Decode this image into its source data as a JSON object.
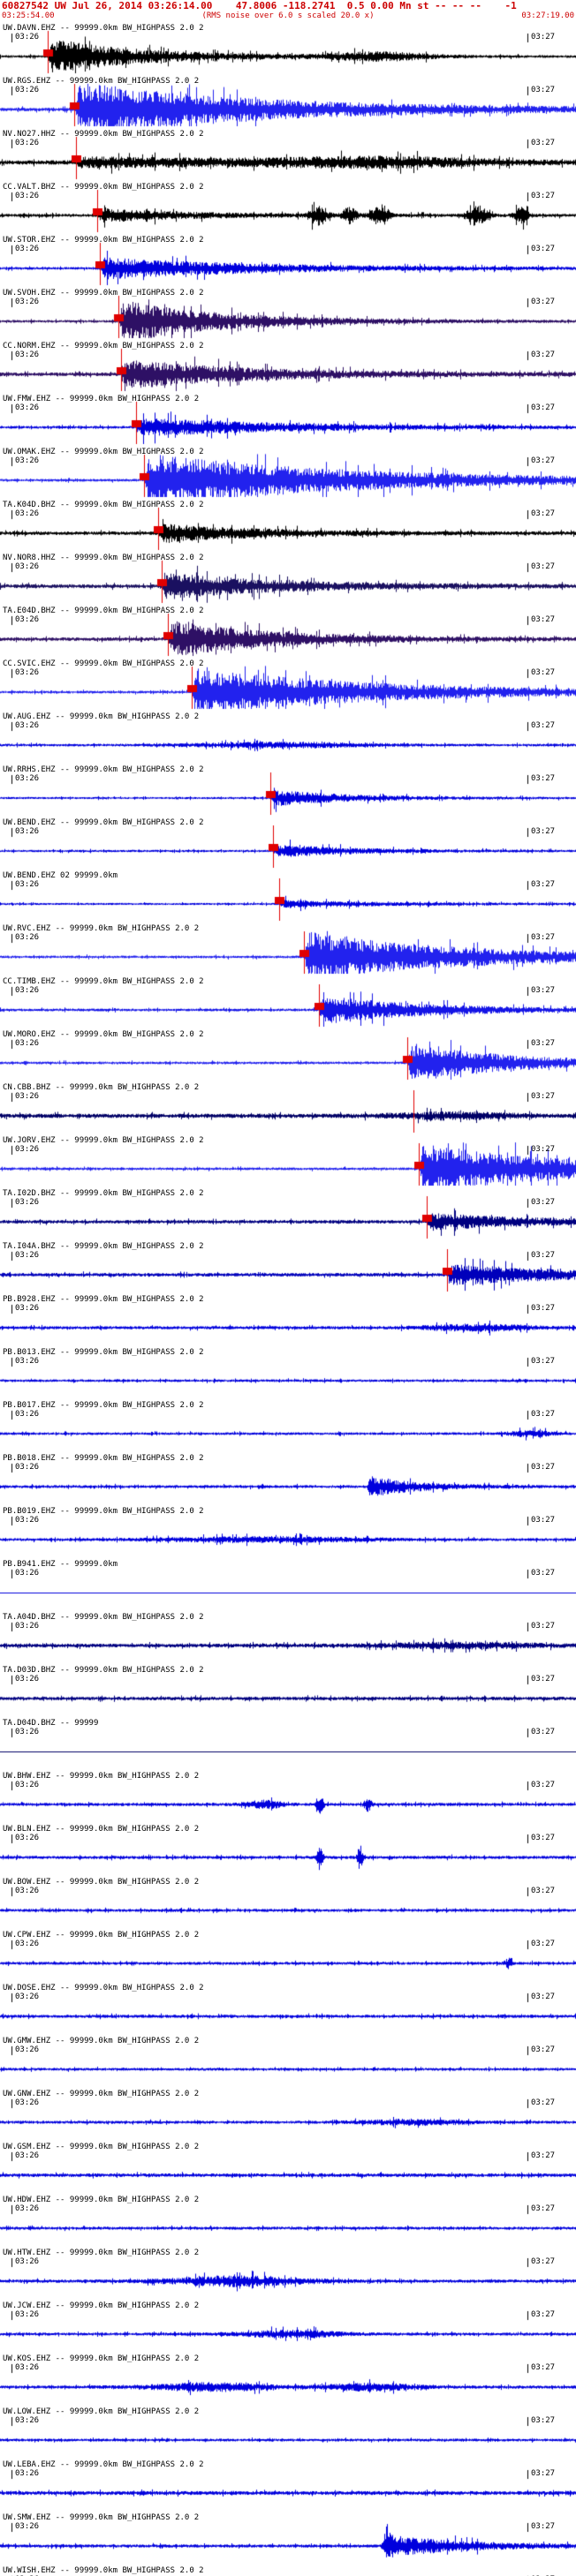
{
  "header": {
    "title": "60827542 UW Jul 26, 2014 03:26:14.00    47.8006 -118.2741  0.5 0.00 Mn st -- -- --    -1",
    "start_time": "03:25:54.00",
    "note": "(RMS noise over 6.0 s scaled 20.0 x)",
    "end_time": "03:27:19.00",
    "accent_color": "#cc0000"
  },
  "event": {
    "event_id": "60827542",
    "network": "UW",
    "origin_time": "Jul 26, 2014 03:26:14.00",
    "latitude": "47.8006",
    "longitude": "-118.2741",
    "depth": "0.5",
    "magnitude": "0.00 Mn"
  },
  "defaults": {
    "tick_left": "03:26",
    "tick_right": "03:27"
  },
  "traces": [
    {
      "label": "UW.DAVN.EHZ -- 99999.0km BW_HIGHPASS 2.0 2",
      "color": "#000000",
      "pick": 54,
      "noise": 1.5,
      "burst": [
        54,
        20,
        0.01
      ],
      "spikes": [
        [
          430,
          4,
          60
        ]
      ]
    },
    {
      "label": "UW.RGS.EHZ -- 99999.0km BW_HIGHPASS 2.0 2",
      "color": "#2222ee",
      "pick": 84,
      "noise": 2.0,
      "burst": [
        85,
        30,
        0.005
      ]
    },
    {
      "label": "NV.NO27.HHZ -- 99999.0km BW_HIGHPASS 2.0 2",
      "color": "#000000",
      "pick": 86,
      "noise": 2.5,
      "burst": [
        86,
        5,
        0.004
      ],
      "spikes": [
        [
          430,
          4,
          120
        ]
      ]
    },
    {
      "label": "CC.VALT.BHZ -- 99999.0km BW_HIGHPASS 2.0 2",
      "color": "#000000",
      "pick": 110,
      "noise": 1.8,
      "burst": [
        110,
        7,
        0.01
      ],
      "spikes": [
        [
          360,
          10,
          10
        ],
        [
          395,
          8,
          8
        ],
        [
          430,
          12,
          10
        ],
        [
          540,
          10,
          12
        ],
        [
          590,
          8,
          8
        ]
      ]
    },
    {
      "label": "UW.STOR.EHZ -- 99999.0km BW_HIGHPASS 2.0 2",
      "color": "#0000dd",
      "pick": 113,
      "noise": 1.5,
      "burst": [
        113,
        12,
        0.006
      ]
    },
    {
      "label": "UW.SVOH.EHZ -- 99999.0km BW_HIGHPASS 2.0 2",
      "color": "#2e1065",
      "pick": 134,
      "noise": 1.5,
      "burst": [
        134,
        24,
        0.009
      ]
    },
    {
      "label": "CC.NORM.EHZ -- 99999.0km BW_HIGHPASS 2.0 2",
      "color": "#2e1065",
      "pick": 137,
      "noise": 2.0,
      "burst": [
        137,
        16,
        0.007
      ]
    },
    {
      "label": "UW.FMW.EHZ -- 99999.0km BW_HIGHPASS 2.0 2",
      "color": "#0000dd",
      "pick": 154,
      "noise": 1.5,
      "burst": [
        154,
        10,
        0.006
      ]
    },
    {
      "label": "UW.OMAK.EHZ -- 99999.0km BW_HIGHPASS 2.0 2",
      "color": "#2222ee",
      "pick": 163,
      "noise": 1.5,
      "burst": [
        163,
        30,
        0.0045
      ]
    },
    {
      "label": "TA.K04D.BHZ -- 99999.0km BW_HIGHPASS 2.0 2",
      "color": "#000000",
      "pick": 179,
      "noise": 2.0,
      "burst": [
        179,
        10,
        0.009
      ]
    },
    {
      "label": "NV.NOR8.HHZ -- 99999.0km BW_HIGHPASS 2.0 2",
      "color": "#1a1060",
      "pick": 183,
      "noise": 2.2,
      "burst": [
        183,
        14,
        0.008
      ]
    },
    {
      "label": "TA.E04D.BHZ -- 99999.0km BW_HIGHPASS 2.0 2",
      "color": "#2e1065",
      "pick": 190,
      "noise": 2.0,
      "burst": [
        190,
        20,
        0.009
      ]
    },
    {
      "label": "CC.SVIC.EHZ -- 99999.0km BW_HIGHPASS 2.0 2",
      "color": "#2222ee",
      "pick": 217,
      "noise": 1.5,
      "burst": [
        217,
        26,
        0.005
      ]
    },
    {
      "label": "UW.AUG.EHZ -- 99999.0km BW_HIGHPASS 2.0 2",
      "color": "#0000dd",
      "noise": 1.5,
      "spikes": [
        [
          320,
          2.5,
          100
        ]
      ]
    },
    {
      "label": "UW.RRHS.EHZ -- 99999.0km BW_HIGHPASS 2.0 2",
      "color": "#0000dd",
      "pick": 306,
      "noise": 1.2,
      "burst": [
        306,
        9,
        0.012
      ]
    },
    {
      "label": "UW.BEND.EHZ -- 99999.0km BW_HIGHPASS 2.0 2",
      "color": "#0000dd",
      "pick": 309,
      "noise": 1.3,
      "burst": [
        309,
        7,
        0.012
      ]
    },
    {
      "label": "UW.BEND.EHZ 02 99999.0km",
      "color": "#0000dd",
      "pick": 316,
      "noise": 1.2,
      "burst": [
        316,
        4,
        0.01
      ]
    },
    {
      "label": "UW.RVC.EHZ -- 99999.0km BW_HIGHPASS 2.0 2",
      "color": "#2222ee",
      "pick": 344,
      "noise": 1.5,
      "burst": [
        344,
        28,
        0.006
      ]
    },
    {
      "label": "CC.TIMB.EHZ -- 99999.0km BW_HIGHPASS 2.0 2",
      "color": "#1414e6",
      "pick": 361,
      "noise": 1.5,
      "burst": [
        361,
        16,
        0.009
      ]
    },
    {
      "label": "UW.MORO.EHZ -- 99999.0km BW_HIGHPASS 2.0 2",
      "color": "#2222ee",
      "pick": 461,
      "noise": 1.5,
      "burst": [
        461,
        22,
        0.009
      ]
    },
    {
      "label": "CN.CBB.BHZ -- 99999.0km BW_HIGHPASS 2.0 2",
      "color": "#000066",
      "pline": 468,
      "noise": 2.4,
      "spikes": [
        [
          510,
          3,
          70
        ]
      ]
    },
    {
      "label": "UW.JORV.EHZ -- 99999.0km BW_HIGHPASS 2.0 2",
      "color": "#2222ee",
      "pick": 474,
      "noise": 1.5,
      "burst": [
        474,
        28,
        0.006
      ]
    },
    {
      "label": "TA.I02D.BHZ -- 99999.0km BW_HIGHPASS 2.0 2",
      "color": "#000080",
      "pick": 483,
      "noise": 2.0,
      "burst": [
        483,
        9,
        0.009
      ]
    },
    {
      "label": "TA.I04A.BHZ -- 99999.0km BW_HIGHPASS 2.0 2",
      "color": "#0000bb",
      "pick": 506,
      "noise": 2.0,
      "burst": [
        506,
        11,
        0.007
      ]
    },
    {
      "label": "PB.B928.EHZ -- 99999.0km BW_HIGHPASS 2.0 2",
      "color": "#0000dd",
      "noise": 1.8,
      "spikes": [
        [
          540,
          3,
          60
        ]
      ]
    },
    {
      "label": "PB.B013.EHZ -- 99999.0km BW_HIGHPASS 2.0 2",
      "color": "#0000dd",
      "noise": 1.5
    },
    {
      "label": "PB.B017.EHZ -- 99999.0km BW_HIGHPASS 2.0 2",
      "color": "#0000dd",
      "noise": 1.5,
      "spikes": [
        [
          600,
          3,
          25
        ]
      ]
    },
    {
      "label": "PB.B018.EHZ -- 99999.0km BW_HIGHPASS 2.0 2",
      "color": "#0000dd",
      "noise": 1.7,
      "burst": [
        415,
        12,
        0.02
      ]
    },
    {
      "label": "PB.B019.EHZ -- 99999.0km BW_HIGHPASS 2.0 2",
      "color": "#0000dd",
      "noise": 1.6,
      "spikes": [
        [
          300,
          2.5,
          120
        ]
      ]
    },
    {
      "label": "PB.B941.EHZ -- 99999.0km",
      "color": "#0000dd",
      "flat": true
    },
    {
      "label": "TA.A04D.BHZ -- 99999.0km BW_HIGHPASS 2.0 2",
      "color": "#000080",
      "noise": 2.2,
      "spikes": [
        [
          520,
          2.5,
          90
        ]
      ]
    },
    {
      "label": "TA.D03D.BHZ -- 99999.0km BW_HIGHPASS 2.0 2",
      "color": "#000080",
      "noise": 2.0
    },
    {
      "label": "TA.D04D.BHZ -- 99999",
      "color": "#000066",
      "flat": true
    },
    {
      "label": "UW.BHW.EHZ -- 99999.0km BW_HIGHPASS 2.0 2",
      "color": "#0000dd",
      "noise": 1.8,
      "spikes": [
        [
          300,
          4,
          20
        ],
        [
          362,
          9,
          4
        ],
        [
          416,
          7,
          4
        ]
      ]
    },
    {
      "label": "UW.BLN.EHZ -- 99999.0km BW_HIGHPASS 2.0 2",
      "color": "#0000dd",
      "noise": 1.8,
      "spikes": [
        [
          362,
          15,
          3
        ],
        [
          407,
          13,
          3
        ]
      ]
    },
    {
      "label": "UW.BOW.EHZ -- 99999.0km BW_HIGHPASS 2.0 2",
      "color": "#0000dd",
      "noise": 1.7
    },
    {
      "label": "UW.CPW.EHZ -- 99999.0km BW_HIGHPASS 2.0 2",
      "color": "#0000dd",
      "noise": 1.7,
      "spikes": [
        [
          575,
          5,
          4
        ]
      ]
    },
    {
      "label": "UW.DOSE.EHZ -- 99999.0km BW_HIGHPASS 2.0 2",
      "color": "#0000dd",
      "noise": 1.8
    },
    {
      "label": "UW.GMW.EHZ -- 99999.0km BW_HIGHPASS 2.0 2",
      "color": "#0000dd",
      "noise": 1.6
    },
    {
      "label": "UW.GNW.EHZ -- 99999.0km BW_HIGHPASS 2.0 2",
      "color": "#0000dd",
      "noise": 1.7,
      "spikes": [
        [
          470,
          2.5,
          60
        ]
      ]
    },
    {
      "label": "UW.GSM.EHZ -- 99999.0km BW_HIGHPASS 2.0 2",
      "color": "#0000dd",
      "noise": 2.0
    },
    {
      "label": "UW.HDW.EHZ -- 99999.0km BW_HIGHPASS 2.0 2",
      "color": "#0000dd",
      "noise": 1.7
    },
    {
      "label": "UW.HTW.EHZ -- 99999.0km BW_HIGHPASS 2.0 2",
      "color": "#0000dd",
      "noise": 1.8,
      "spikes": [
        [
          270,
          5,
          80
        ]
      ]
    },
    {
      "label": "UW.JCW.EHZ -- 99999.0km BW_HIGHPASS 2.0 2",
      "color": "#0000dd",
      "noise": 1.7,
      "spikes": [
        [
          330,
          3.5,
          60
        ]
      ]
    },
    {
      "label": "UW.KOS.EHZ -- 99999.0km BW_HIGHPASS 2.0 2",
      "color": "#0000dd",
      "noise": 1.8,
      "spikes": [
        [
          240,
          4,
          70
        ],
        [
          420,
          3.5,
          50
        ]
      ]
    },
    {
      "label": "UW.LOW.EHZ -- 99999.0km BW_HIGHPASS 2.0 2",
      "color": "#0000dd",
      "noise": 1.6
    },
    {
      "label": "UW.LEBA.EHZ -- 99999.0km BW_HIGHPASS 2.0 2",
      "color": "#0000dd",
      "noise": 2.2
    },
    {
      "label": "UW.SMW.EHZ -- 99999.0km BW_HIGHPASS 2.0 2",
      "color": "#0000dd",
      "noise": 1.8,
      "burst": [
        430,
        13,
        0.012
      ]
    },
    {
      "label": "UW.WISH.EHZ -- 99999.0km BW_HIGHPASS 2.0 2",
      "color": "#0000dd",
      "noise": 1.5,
      "partial": true
    }
  ]
}
